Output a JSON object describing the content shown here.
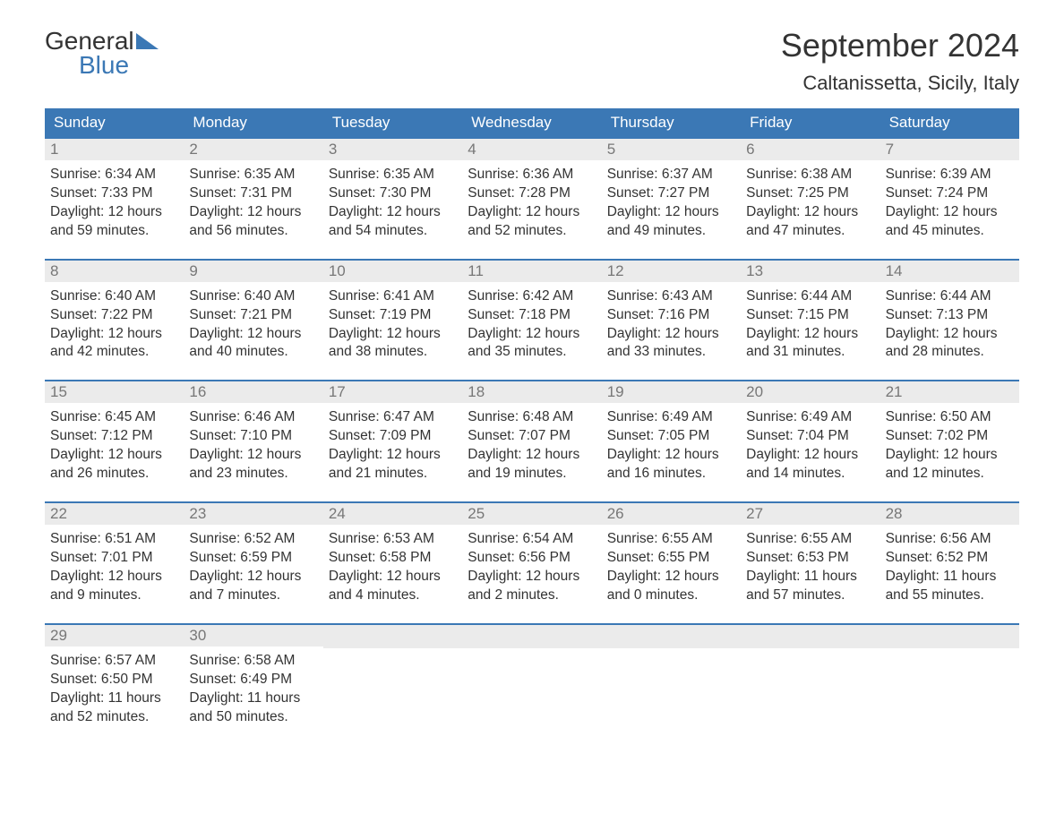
{
  "logo": {
    "line1": "General",
    "line2": "Blue"
  },
  "title": "September 2024",
  "location": "Caltanissetta, Sicily, Italy",
  "day_headers": [
    "Sunday",
    "Monday",
    "Tuesday",
    "Wednesday",
    "Thursday",
    "Friday",
    "Saturday"
  ],
  "colors": {
    "header_bg": "#3b78b5",
    "header_text": "#ffffff",
    "day_num_bg": "#ebebeb",
    "day_num_text": "#777777",
    "body_text": "#333333",
    "logo_blue": "#3b78b5",
    "background": "#ffffff",
    "border": "#3b78b5"
  },
  "weeks": [
    [
      {
        "day": "1",
        "sunrise": "6:34 AM",
        "sunset": "7:33 PM",
        "daylight": "12 hours and 59 minutes."
      },
      {
        "day": "2",
        "sunrise": "6:35 AM",
        "sunset": "7:31 PM",
        "daylight": "12 hours and 56 minutes."
      },
      {
        "day": "3",
        "sunrise": "6:35 AM",
        "sunset": "7:30 PM",
        "daylight": "12 hours and 54 minutes."
      },
      {
        "day": "4",
        "sunrise": "6:36 AM",
        "sunset": "7:28 PM",
        "daylight": "12 hours and 52 minutes."
      },
      {
        "day": "5",
        "sunrise": "6:37 AM",
        "sunset": "7:27 PM",
        "daylight": "12 hours and 49 minutes."
      },
      {
        "day": "6",
        "sunrise": "6:38 AM",
        "sunset": "7:25 PM",
        "daylight": "12 hours and 47 minutes."
      },
      {
        "day": "7",
        "sunrise": "6:39 AM",
        "sunset": "7:24 PM",
        "daylight": "12 hours and 45 minutes."
      }
    ],
    [
      {
        "day": "8",
        "sunrise": "6:40 AM",
        "sunset": "7:22 PM",
        "daylight": "12 hours and 42 minutes."
      },
      {
        "day": "9",
        "sunrise": "6:40 AM",
        "sunset": "7:21 PM",
        "daylight": "12 hours and 40 minutes."
      },
      {
        "day": "10",
        "sunrise": "6:41 AM",
        "sunset": "7:19 PM",
        "daylight": "12 hours and 38 minutes."
      },
      {
        "day": "11",
        "sunrise": "6:42 AM",
        "sunset": "7:18 PM",
        "daylight": "12 hours and 35 minutes."
      },
      {
        "day": "12",
        "sunrise": "6:43 AM",
        "sunset": "7:16 PM",
        "daylight": "12 hours and 33 minutes."
      },
      {
        "day": "13",
        "sunrise": "6:44 AM",
        "sunset": "7:15 PM",
        "daylight": "12 hours and 31 minutes."
      },
      {
        "day": "14",
        "sunrise": "6:44 AM",
        "sunset": "7:13 PM",
        "daylight": "12 hours and 28 minutes."
      }
    ],
    [
      {
        "day": "15",
        "sunrise": "6:45 AM",
        "sunset": "7:12 PM",
        "daylight": "12 hours and 26 minutes."
      },
      {
        "day": "16",
        "sunrise": "6:46 AM",
        "sunset": "7:10 PM",
        "daylight": "12 hours and 23 minutes."
      },
      {
        "day": "17",
        "sunrise": "6:47 AM",
        "sunset": "7:09 PM",
        "daylight": "12 hours and 21 minutes."
      },
      {
        "day": "18",
        "sunrise": "6:48 AM",
        "sunset": "7:07 PM",
        "daylight": "12 hours and 19 minutes."
      },
      {
        "day": "19",
        "sunrise": "6:49 AM",
        "sunset": "7:05 PM",
        "daylight": "12 hours and 16 minutes."
      },
      {
        "day": "20",
        "sunrise": "6:49 AM",
        "sunset": "7:04 PM",
        "daylight": "12 hours and 14 minutes."
      },
      {
        "day": "21",
        "sunrise": "6:50 AM",
        "sunset": "7:02 PM",
        "daylight": "12 hours and 12 minutes."
      }
    ],
    [
      {
        "day": "22",
        "sunrise": "6:51 AM",
        "sunset": "7:01 PM",
        "daylight": "12 hours and 9 minutes."
      },
      {
        "day": "23",
        "sunrise": "6:52 AM",
        "sunset": "6:59 PM",
        "daylight": "12 hours and 7 minutes."
      },
      {
        "day": "24",
        "sunrise": "6:53 AM",
        "sunset": "6:58 PM",
        "daylight": "12 hours and 4 minutes."
      },
      {
        "day": "25",
        "sunrise": "6:54 AM",
        "sunset": "6:56 PM",
        "daylight": "12 hours and 2 minutes."
      },
      {
        "day": "26",
        "sunrise": "6:55 AM",
        "sunset": "6:55 PM",
        "daylight": "12 hours and 0 minutes."
      },
      {
        "day": "27",
        "sunrise": "6:55 AM",
        "sunset": "6:53 PM",
        "daylight": "11 hours and 57 minutes."
      },
      {
        "day": "28",
        "sunrise": "6:56 AM",
        "sunset": "6:52 PM",
        "daylight": "11 hours and 55 minutes."
      }
    ],
    [
      {
        "day": "29",
        "sunrise": "6:57 AM",
        "sunset": "6:50 PM",
        "daylight": "11 hours and 52 minutes."
      },
      {
        "day": "30",
        "sunrise": "6:58 AM",
        "sunset": "6:49 PM",
        "daylight": "11 hours and 50 minutes."
      },
      null,
      null,
      null,
      null,
      null
    ]
  ],
  "labels": {
    "sunrise": "Sunrise:",
    "sunset": "Sunset:",
    "daylight": "Daylight:"
  }
}
